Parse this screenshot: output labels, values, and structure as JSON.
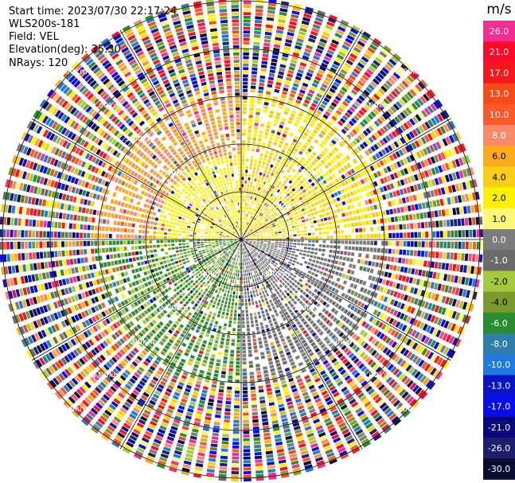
{
  "info": {
    "start_time": "Start time: 2023/07/30 22:17:24",
    "station": "WLS200s-181",
    "field": "Field: VEL",
    "elevation": "Elevation(deg): 35.30",
    "nrays": "NRays: 120"
  },
  "chart_data": {
    "type": "heatmap",
    "projection": "polar-ppi",
    "field": "VEL",
    "n_rays": 120,
    "range_rings_km": [
      1.0,
      2.0,
      3.0,
      4.0,
      5.0
    ],
    "ring_labels": [
      "1.00km",
      "2.00km",
      "3.00km",
      "4.00km",
      "5.00km"
    ],
    "spokes_every_deg": 30,
    "colorbar": {
      "unit": "m/s",
      "tick_labels": [
        "26.0",
        "21.0",
        "17.0",
        "13.0",
        "10.0",
        "8.0",
        "6.0",
        "4.0",
        "2.0",
        "1.0",
        "0.0",
        "-1.0",
        "-2.0",
        "-4.0",
        "-6.0",
        "-8.0",
        "-10.0",
        "-13.0",
        "-17.0",
        "-21.0",
        "-26.0",
        "-30.0"
      ],
      "colors": [
        "#f42e91",
        "#fc0a2a",
        "#f4181e",
        "#f74a17",
        "#fd5a2c",
        "#fa8a6a",
        "#fcab1c",
        "#fbcf18",
        "#fff200",
        "#fdf877",
        "#7c7c7c",
        "#6a6a6a",
        "#a4c93c",
        "#7c9a2e",
        "#2a8c2e",
        "#2e7ea8",
        "#1f7adf",
        "#0a14c4",
        "#070ee9",
        "#08087a",
        "#1e1e6e",
        "#0b0b33"
      ]
    }
  }
}
